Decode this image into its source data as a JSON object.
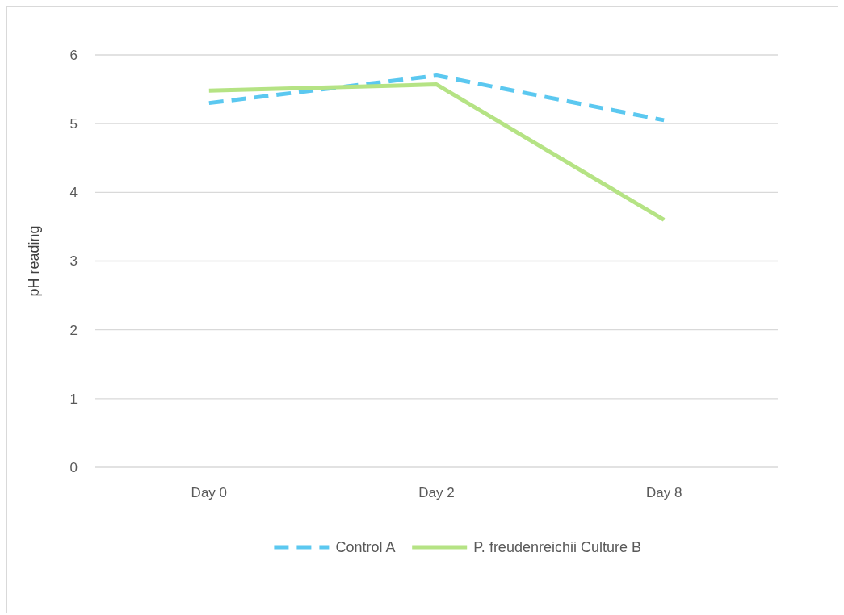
{
  "chart_data": {
    "type": "line",
    "ylabel": "pH reading",
    "categories": [
      "Day 0",
      "Day 2",
      "Day 8"
    ],
    "series": [
      {
        "name": "Control A",
        "color": "#5bc8f0",
        "line_style": "dashed",
        "values": [
          5.3,
          5.7,
          5.05
        ]
      },
      {
        "name": "P. freudenreichii Culture B",
        "color": "#b5e384",
        "line_style": "solid",
        "values": [
          5.48,
          5.57,
          3.6
        ]
      }
    ],
    "ylim": [
      0,
      6
    ],
    "yticks": [
      0,
      1,
      2,
      3,
      4,
      5,
      6
    ],
    "grid": "y",
    "legend": "bottom"
  }
}
